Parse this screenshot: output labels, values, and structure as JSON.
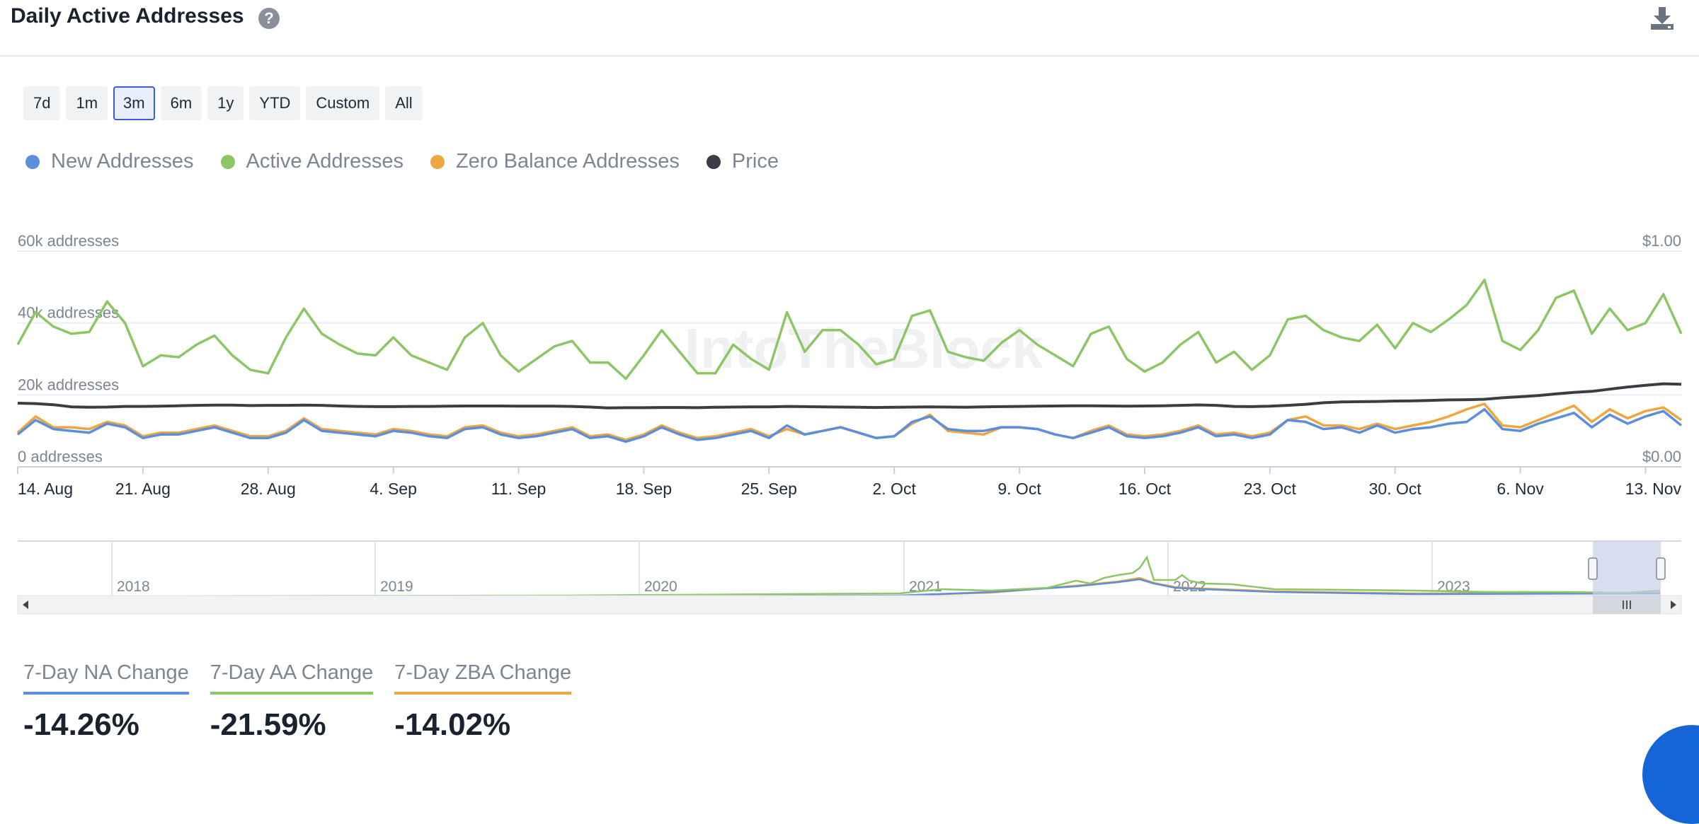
{
  "header": {
    "title": "Daily Active Addresses",
    "help_icon": "question-circle-icon",
    "download_icon": "download-icon"
  },
  "ranges": [
    {
      "label": "7d",
      "active": false
    },
    {
      "label": "1m",
      "active": false
    },
    {
      "label": "3m",
      "active": true
    },
    {
      "label": "6m",
      "active": false
    },
    {
      "label": "1y",
      "active": false
    },
    {
      "label": "YTD",
      "active": false
    },
    {
      "label": "Custom",
      "active": false
    },
    {
      "label": "All",
      "active": false
    }
  ],
  "legend": [
    {
      "label": "New Addresses",
      "color": "#5b8fdd"
    },
    {
      "label": "Active Addresses",
      "color": "#8cc665"
    },
    {
      "label": "Zero Balance Addresses",
      "color": "#eea63e"
    },
    {
      "label": "Price",
      "color": "#3a3d43"
    }
  ],
  "chart_data": {
    "type": "line",
    "title": "Daily Active Addresses",
    "y_left": {
      "ticks": [
        "0 addresses",
        "20k addresses",
        "40k addresses",
        "60k addresses"
      ],
      "range": [
        0,
        60000
      ]
    },
    "y_right": {
      "ticks": [
        "$0.00",
        "$1.00"
      ],
      "range": [
        0,
        1
      ]
    },
    "x_ticks": [
      "14. Aug",
      "21. Aug",
      "28. Aug",
      "4. Sep",
      "11. Sep",
      "18. Sep",
      "25. Sep",
      "2. Oct",
      "9. Oct",
      "16. Oct",
      "23. Oct",
      "30. Oct",
      "6. Nov",
      "13. Nov"
    ],
    "x_start": "2023-08-14",
    "series": [
      {
        "name": "Active Addresses",
        "axis": "left",
        "color": "#8cc665",
        "values": [
          34000,
          43000,
          39000,
          37000,
          37500,
          46000,
          40000,
          28000,
          31000,
          30500,
          34000,
          36500,
          31000,
          27000,
          26000,
          36000,
          44000,
          37000,
          34000,
          31500,
          31000,
          36000,
          31000,
          29000,
          27000,
          36000,
          40000,
          31000,
          26500,
          30000,
          33500,
          35000,
          29000,
          29000,
          24500,
          31000,
          38000,
          32000,
          26000,
          26000,
          34000,
          30000,
          27000,
          43000,
          32000,
          38000,
          38000,
          34000,
          28500,
          30000,
          42000,
          43500,
          32000,
          30500,
          29500,
          34500,
          38000,
          34000,
          31000,
          28000,
          37000,
          39000,
          30000,
          26500,
          29000,
          34000,
          37500,
          29000,
          32000,
          27000,
          31000,
          41000,
          42000,
          38000,
          36000,
          35000,
          39500,
          33000,
          40000,
          37500,
          41000,
          45000,
          52000,
          35000,
          32500,
          38000,
          47000,
          49000,
          37000,
          44000,
          38000,
          40000,
          48000,
          37000
        ]
      },
      {
        "name": "New Addresses",
        "axis": "left",
        "color": "#5b8fdd",
        "values": [
          9000,
          13000,
          10500,
          10000,
          9500,
          12000,
          11000,
          8000,
          9000,
          9000,
          10000,
          11000,
          9500,
          8000,
          8000,
          9500,
          13000,
          10000,
          9500,
          9000,
          8500,
          10000,
          9500,
          8500,
          8000,
          10500,
          11000,
          9000,
          8000,
          8500,
          9500,
          10500,
          8000,
          8500,
          7000,
          8500,
          11000,
          9000,
          7500,
          8000,
          9000,
          10000,
          8000,
          11500,
          9000,
          10000,
          11000,
          9500,
          8000,
          8500,
          12500,
          14000,
          10500,
          10000,
          10000,
          11000,
          11000,
          10500,
          9000,
          8000,
          9500,
          11000,
          8500,
          8000,
          8500,
          9500,
          11000,
          8500,
          9000,
          8000,
          9000,
          13000,
          12500,
          10500,
          11000,
          9500,
          11500,
          9500,
          10500,
          11000,
          12000,
          12500,
          16000,
          10500,
          10000,
          12000,
          13500,
          15000,
          11000,
          14500,
          12000,
          14000,
          15500,
          11500
        ]
      },
      {
        "name": "Zero Balance Addresses",
        "axis": "left",
        "color": "#eea63e",
        "values": [
          9500,
          14000,
          11000,
          11000,
          10500,
          12500,
          11500,
          8500,
          9500,
          9500,
          10500,
          11500,
          10000,
          8500,
          8500,
          10000,
          13500,
          10500,
          10000,
          9500,
          9000,
          10500,
          10000,
          9000,
          8500,
          11000,
          11500,
          9500,
          8500,
          9000,
          10000,
          11000,
          8500,
          9000,
          7500,
          9000,
          11500,
          9500,
          8000,
          8500,
          9500,
          10500,
          8500,
          10500,
          9000,
          10000,
          11000,
          9500,
          8000,
          8500,
          12000,
          14500,
          10000,
          9500,
          9000,
          11000,
          11000,
          10500,
          9000,
          8000,
          10000,
          11500,
          9000,
          8500,
          9000,
          10000,
          11500,
          9000,
          9500,
          8500,
          9500,
          13000,
          14000,
          11500,
          11500,
          10500,
          12000,
          10500,
          11500,
          12500,
          14000,
          16000,
          17500,
          11500,
          11000,
          13000,
          15000,
          17000,
          12500,
          16000,
          13500,
          15500,
          16500,
          13000
        ]
      },
      {
        "name": "Price",
        "axis": "right",
        "color": "#3a3d43",
        "values": [
          0.295,
          0.293,
          0.288,
          0.278,
          0.276,
          0.277,
          0.28,
          0.28,
          0.281,
          0.283,
          0.285,
          0.286,
          0.286,
          0.284,
          0.285,
          0.285,
          0.286,
          0.285,
          0.282,
          0.28,
          0.279,
          0.279,
          0.28,
          0.28,
          0.281,
          0.282,
          0.282,
          0.282,
          0.281,
          0.281,
          0.281,
          0.28,
          0.277,
          0.273,
          0.274,
          0.274,
          0.275,
          0.275,
          0.274,
          0.276,
          0.277,
          0.278,
          0.278,
          0.28,
          0.279,
          0.278,
          0.277,
          0.276,
          0.275,
          0.276,
          0.277,
          0.278,
          0.277,
          0.276,
          0.278,
          0.279,
          0.28,
          0.281,
          0.282,
          0.283,
          0.283,
          0.282,
          0.281,
          0.282,
          0.283,
          0.285,
          0.287,
          0.285,
          0.28,
          0.279,
          0.281,
          0.285,
          0.29,
          0.297,
          0.301,
          0.302,
          0.303,
          0.305,
          0.306,
          0.308,
          0.31,
          0.311,
          0.313,
          0.32,
          0.325,
          0.33,
          0.338,
          0.345,
          0.35,
          0.36,
          0.37,
          0.378,
          0.385,
          0.383
        ]
      }
    ]
  },
  "navigator": {
    "years": [
      "2018",
      "2019",
      "2020",
      "2021",
      "2022",
      "2023"
    ]
  },
  "stats": [
    {
      "label": "7-Day NA Change",
      "value": "-14.26%",
      "color": "#5b8fdd"
    },
    {
      "label": "7-Day AA Change",
      "value": "-21.59%",
      "color": "#8cc665"
    },
    {
      "label": "7-Day ZBA Change",
      "value": "-14.02%",
      "color": "#eea63e"
    }
  ]
}
